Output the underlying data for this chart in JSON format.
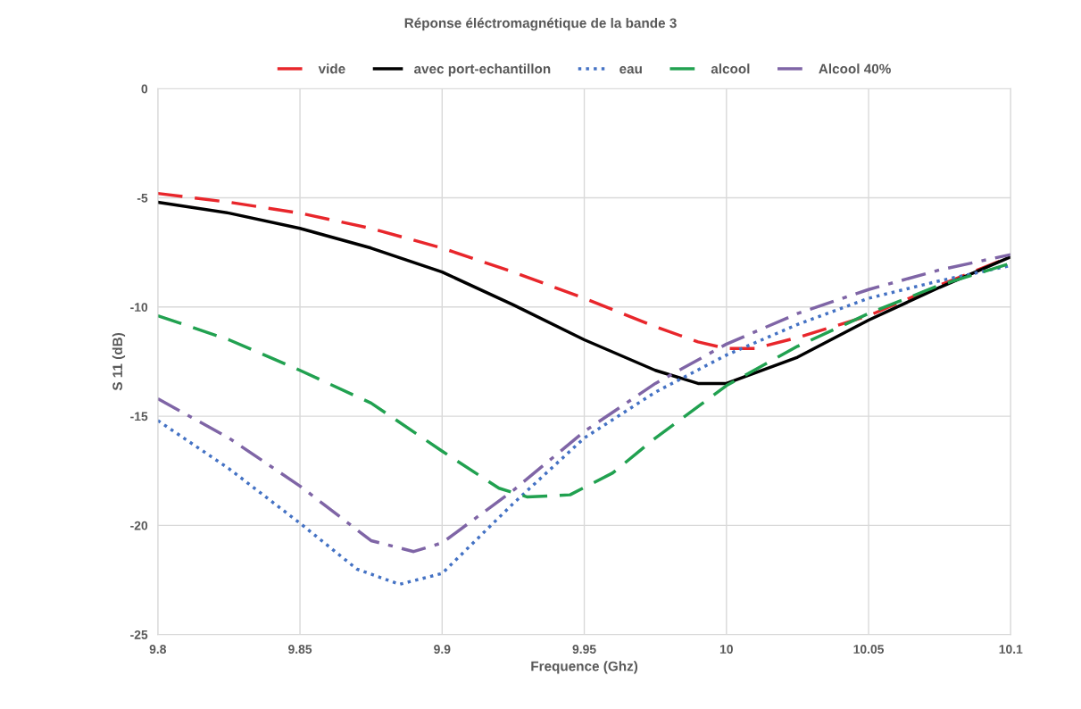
{
  "chart_data": {
    "type": "line",
    "title": "Réponse éléctromagnétique de la bande 3",
    "xlabel": "Frequence (Ghz)",
    "ylabel": "S 11 (dB)",
    "xlim": [
      9.8,
      10.1
    ],
    "xticks": [
      9.8,
      9.85,
      9.9,
      9.95,
      10,
      10.05,
      10.1
    ],
    "ylim": [
      -25,
      0
    ],
    "yticks": [
      -25,
      -20,
      -15,
      -10,
      -5,
      0
    ],
    "grid": true,
    "legend": "top",
    "marker": "none",
    "series": [
      {
        "name": "vide",
        "color": "#e8262b",
        "line_style": "dashed",
        "x": [
          9.8,
          9.825,
          9.85,
          9.875,
          9.9,
          9.925,
          9.95,
          9.975,
          9.99,
          10.0,
          10.01,
          10.025,
          10.05,
          10.075,
          10.1
        ],
        "values": [
          -4.8,
          -5.2,
          -5.7,
          -6.4,
          -7.3,
          -8.4,
          -9.6,
          -10.9,
          -11.6,
          -11.9,
          -11.9,
          -11.4,
          -10.4,
          -9.0,
          -7.7
        ]
      },
      {
        "name": "avec port-echantillon",
        "color": "#000000",
        "line_style": "solid",
        "x": [
          9.8,
          9.825,
          9.85,
          9.875,
          9.9,
          9.925,
          9.95,
          9.975,
          9.99,
          10.0,
          10.025,
          10.05,
          10.075,
          10.1
        ],
        "values": [
          -5.2,
          -5.7,
          -6.4,
          -7.3,
          -8.4,
          -9.9,
          -11.5,
          -12.9,
          -13.5,
          -13.5,
          -12.3,
          -10.6,
          -9.1,
          -7.7
        ]
      },
      {
        "name": "eau",
        "color": "#4472c4",
        "line_style": "dotted",
        "x": [
          9.8,
          9.825,
          9.85,
          9.87,
          9.885,
          9.9,
          9.925,
          9.95,
          9.975,
          10.0,
          10.025,
          10.05,
          10.075,
          10.1
        ],
        "values": [
          -15.2,
          -17.4,
          -19.9,
          -22.0,
          -22.7,
          -22.2,
          -19.0,
          -16.0,
          -13.9,
          -12.2,
          -10.8,
          -9.6,
          -8.8,
          -8.1
        ]
      },
      {
        "name": "alcool",
        "color": "#21a150",
        "line_style": "dashed",
        "x": [
          9.8,
          9.825,
          9.85,
          9.875,
          9.9,
          9.92,
          9.93,
          9.945,
          9.96,
          9.975,
          10.0,
          10.025,
          10.05,
          10.075,
          10.1
        ],
        "values": [
          -10.4,
          -11.5,
          -12.9,
          -14.4,
          -16.6,
          -18.3,
          -18.7,
          -18.6,
          -17.6,
          -16.0,
          -13.6,
          -11.8,
          -10.3,
          -9.0,
          -8.0
        ]
      },
      {
        "name": "Alcool 40%",
        "color": "#7f65a6",
        "line_style": "dashdot",
        "x": [
          9.8,
          9.825,
          9.85,
          9.875,
          9.89,
          9.9,
          9.925,
          9.95,
          9.975,
          10.0,
          10.025,
          10.05,
          10.075,
          10.1
        ],
        "values": [
          -14.2,
          -16.0,
          -18.2,
          -20.7,
          -21.2,
          -20.8,
          -18.4,
          -15.7,
          -13.5,
          -11.7,
          -10.3,
          -9.2,
          -8.3,
          -7.6
        ]
      }
    ]
  }
}
